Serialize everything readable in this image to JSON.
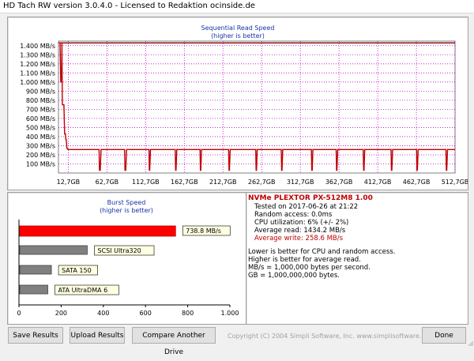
{
  "window": {
    "title": "HD Tach RW version 3.0.4.0 - Licensed to Redaktion ocinside.de"
  },
  "colors": {
    "read": "#800000",
    "write": "#c00000",
    "bar_main": "#ff0000",
    "bar_ref": "#808080",
    "label_bg": "#ffffe1",
    "grid": "#c000c0",
    "title": "#1a32a8"
  },
  "sequential": {
    "title": "Sequential Read Speed",
    "subtitle": "(higher is better)",
    "y_ticks": [
      "1.400 MB/s",
      "1.300 MB/s",
      "1.200 MB/s",
      "1.100 MB/s",
      "1.000 MB/s",
      "900 MB/s",
      "800 MB/s",
      "700 MB/s",
      "600 MB/s",
      "500 MB/s",
      "400 MB/s",
      "300 MB/s",
      "200 MB/s",
      "100 MB/s"
    ],
    "x_ticks": [
      "12,7GB",
      "62,7GB",
      "112,7GB",
      "162,7GB",
      "212,7GB",
      "262,7GB",
      "312,7GB",
      "362,7GB",
      "412,7GB",
      "462,7GB",
      "512,7GB"
    ]
  },
  "chart_data": {
    "type": "line",
    "title": "Sequential Read Speed",
    "subtitle": "(higher is better)",
    "xlabel": "",
    "ylabel": "",
    "ylim": [
      0,
      1450
    ],
    "xlim": [
      0,
      512.7
    ],
    "x_ticks": [
      "12,7GB",
      "62,7GB",
      "112,7GB",
      "162,7GB",
      "212,7GB",
      "262,7GB",
      "312,7GB",
      "362,7GB",
      "412,7GB",
      "462,7GB",
      "512,7GB"
    ],
    "grid": true,
    "series": [
      {
        "kind": "read",
        "x": [
          0,
          2,
          3,
          4,
          5,
          6,
          7,
          8,
          9,
          10,
          11,
          12,
          13,
          14,
          15,
          512.7
        ],
        "y": [
          1430,
          1430,
          1430,
          1430,
          1430,
          1430,
          1430,
          1430,
          1430,
          1430,
          1430,
          1430,
          1430,
          1430,
          1430,
          1430
        ]
      },
      {
        "kind": "write",
        "x": [
          0,
          2,
          3,
          4,
          4.5,
          5,
          6,
          7,
          8,
          9,
          9.5,
          10,
          11,
          12.5,
          14,
          52.5,
          53,
          54,
          55,
          85.5,
          86,
          87,
          88,
          117,
          117.5,
          118,
          119,
          151,
          151.5,
          152,
          153,
          183,
          183.5,
          184,
          185,
          220,
          220.5,
          221,
          222,
          255,
          255.5,
          256,
          257,
          288,
          288.5,
          289,
          290,
          327,
          327.5,
          328,
          329,
          359,
          359.5,
          360,
          361,
          394,
          394.5,
          395,
          396,
          430,
          430.5,
          431,
          432,
          463,
          463.5,
          464,
          465,
          501,
          501.5,
          502,
          503,
          512.7
        ],
        "y": [
          1430,
          1430,
          1000,
          1000,
          1430,
          750,
          750,
          750,
          430,
          430,
          370,
          370,
          270,
          258,
          258,
          258,
          30,
          30,
          258,
          258,
          30,
          30,
          258,
          258,
          30,
          30,
          258,
          258,
          30,
          30,
          258,
          258,
          30,
          30,
          258,
          258,
          30,
          30,
          258,
          258,
          30,
          30,
          258,
          258,
          30,
          30,
          258,
          258,
          30,
          30,
          258,
          258,
          30,
          30,
          258,
          258,
          30,
          30,
          258,
          258,
          30,
          30,
          258,
          258,
          30,
          30,
          258,
          258,
          30,
          30,
          258,
          258
        ]
      }
    ]
  },
  "burst": {
    "title": "Burst Speed",
    "subtitle": "(higher is better)",
    "x_ticks": [
      "0",
      "200",
      "400",
      "600",
      "800",
      "1.000"
    ],
    "xlim": [
      0,
      1000
    ],
    "bars": [
      {
        "label": "738.8 MB/s",
        "value": 738.8,
        "highlight": true
      },
      {
        "label": "SCSI Ultra320",
        "value": 320,
        "highlight": false
      },
      {
        "label": "SATA 150",
        "value": 150,
        "highlight": false
      },
      {
        "label": "ATA UltraDMA 6",
        "value": 133,
        "highlight": false
      }
    ]
  },
  "info": {
    "drive": "NVMe PLEXTOR PX-512M8 1.00",
    "tested": "Tested on 2017-06-26 at 21:22",
    "random": "Random access: 0.0ms",
    "cpu": "CPU utilization: 6% (+/- 2%)",
    "avg_read": "Average read: 1434.2 MB/s",
    "avg_write": "Average write: 258.6 MB/s",
    "note1": "Lower is better for CPU and random access.",
    "note2": "Higher is better for average read.",
    "note3": "MB/s = 1,000,000 bytes per second.",
    "note4": "GB = 1,000,000,000 bytes."
  },
  "buttons": {
    "save": "Save Results",
    "upload": "Upload Results",
    "compare": "Compare Another Drive",
    "done": "Done"
  },
  "footer": {
    "copyright": "Copyright (C) 2004 Simpli Software, Inc. www.simplisoftware.com"
  }
}
